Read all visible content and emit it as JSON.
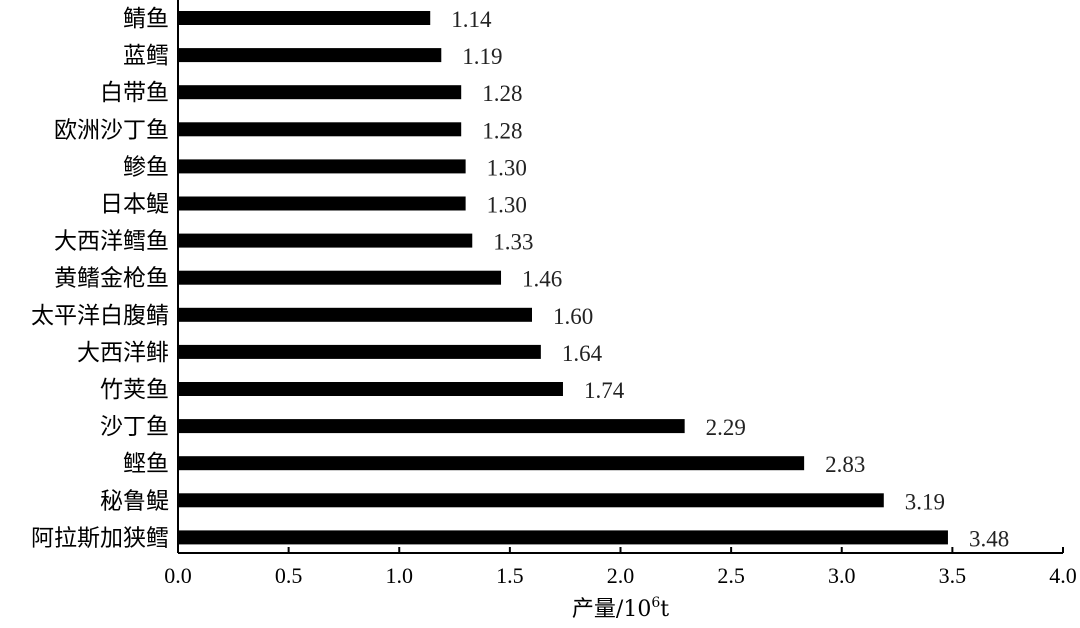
{
  "chart_data": {
    "type": "bar",
    "orientation": "horizontal",
    "title": "",
    "xlabel_parts": {
      "main": "产量/10",
      "sup": "6",
      "tail": "t"
    },
    "ylabel": "",
    "categories": [
      "鲭鱼",
      "蓝鳕",
      "白带鱼",
      "欧洲沙丁鱼",
      "鲹鱼",
      "日本鳀",
      "大西洋鳕鱼",
      "黄鳍金枪鱼",
      "太平洋白腹鲭",
      "大西洋鲱",
      "竹荚鱼",
      "沙丁鱼",
      "鲣鱼",
      "秘鲁鳀",
      "阿拉斯加狭鳕"
    ],
    "values": [
      1.14,
      1.19,
      1.28,
      1.28,
      1.3,
      1.3,
      1.33,
      1.46,
      1.6,
      1.64,
      1.74,
      2.29,
      2.83,
      3.19,
      3.48
    ],
    "value_labels": [
      "1.14",
      "1.19",
      "1.28",
      "1.28",
      "1.30",
      "1.30",
      "1.33",
      "1.46",
      "1.60",
      "1.64",
      "1.74",
      "2.29",
      "2.83",
      "3.19",
      "3.48"
    ],
    "xlim": [
      0,
      4.0
    ],
    "xticks": [
      "0.0",
      "0.5",
      "1.0",
      "1.5",
      "2.0",
      "2.5",
      "3.0",
      "3.5",
      "4.0"
    ],
    "bar_color": "#000000",
    "grid": false,
    "legend": "none"
  }
}
